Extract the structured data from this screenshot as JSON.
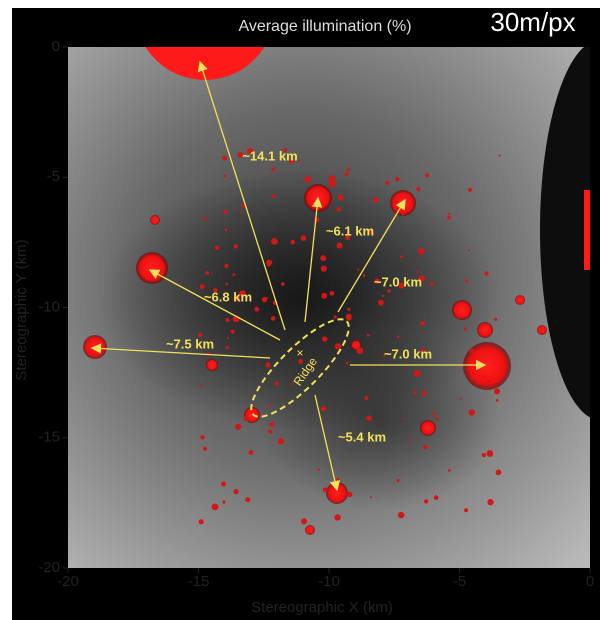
{
  "header": {
    "title": "Average illumination (%)",
    "scale": "30m/px"
  },
  "map": {
    "x_label": "Stereographic X (km)",
    "y_label": "Stereographic Y (km)",
    "xlim": [
      -20,
      0
    ],
    "ylim": [
      -20,
      0
    ],
    "xticks": [
      -20,
      -15,
      -10,
      -5,
      0
    ],
    "yticks": [
      0,
      -5,
      -10,
      -15,
      -20
    ]
  },
  "annotations": {
    "distances": [
      "~14.1 km",
      "~6.1 km",
      "~7.0 km",
      "~6.8 km",
      "~7.5 km",
      "~7.0 km",
      "~5.4 km"
    ],
    "ridge": "Ridge"
  }
}
